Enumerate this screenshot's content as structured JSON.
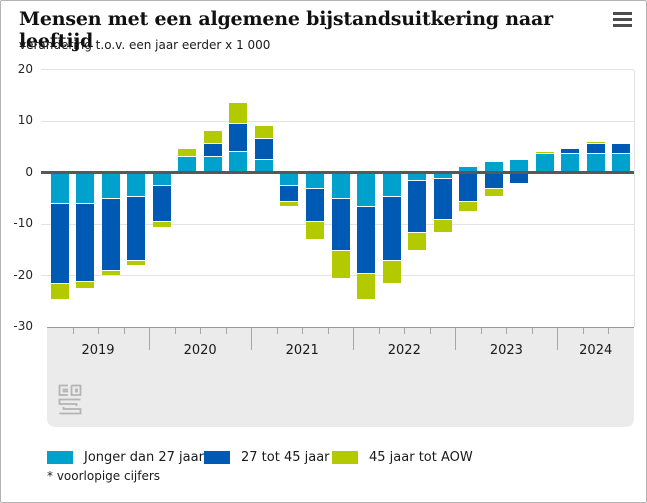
{
  "widget": {
    "title": "Mensen met een algemene bijstandsuitkering naar leeftijd",
    "subtitle": "verandering t.o.v. een jaar eerder x 1 000",
    "menu_icon": "hamburger-icon",
    "watermark_icon": "cbs-logo",
    "footnote": "* voorlopige cijfers"
  },
  "colors": {
    "jonger_dan_27": "#00a1cd",
    "van_27_tot_45": "#0059b3",
    "van_45_tot_aow": "#b3c900",
    "zero_line": "#58585a",
    "gridline": "#e3e3e3",
    "axis_band": "#ebebeb"
  },
  "legend": {
    "items": [
      {
        "label": "Jonger dan 27 jaar",
        "color": "#00a1cd"
      },
      {
        "label": "27 tot 45 jaar",
        "color": "#0059b3"
      },
      {
        "label": "45 jaar tot AOW",
        "color": "#b3c900"
      }
    ]
  },
  "chart_data": {
    "type": "bar",
    "stacked": true,
    "title": "Mensen met een algemene bijstandsuitkering naar leeftijd",
    "ylabel": "verandering t.o.v. een jaar eerder x 1 000",
    "ylim": [
      -30,
      20
    ],
    "yticks": [
      20,
      10,
      0,
      -10,
      -20,
      -30
    ],
    "grid": true,
    "legend_position": "bottom",
    "x_years": [
      "2019",
      "2020",
      "2021",
      "2022",
      "2023",
      "2024"
    ],
    "quarters_per_year": [
      4,
      4,
      4,
      4,
      4,
      3
    ],
    "categories": [
      "2019 Q1",
      "2019 Q2",
      "2019 Q3",
      "2019 Q4",
      "2020 Q1",
      "2020 Q2",
      "2020 Q3",
      "2020 Q4",
      "2021 Q1",
      "2021 Q2",
      "2021 Q3",
      "2021 Q4",
      "2022 Q1",
      "2022 Q2",
      "2022 Q3",
      "2022 Q4",
      "2023 Q1",
      "2023 Q2",
      "2023 Q3",
      "2023 Q4",
      "2024 Q1",
      "2024 Q2",
      "2024 Q3"
    ],
    "series": [
      {
        "name": "Jonger dan 27 jaar",
        "color": "#00a1cd",
        "values": [
          -6,
          -6,
          -5,
          -4.5,
          -2.5,
          3,
          3,
          4,
          2.5,
          -2.5,
          -3,
          -5,
          -6.5,
          -4.5,
          -1.5,
          -1,
          1,
          2,
          2.5,
          3.5,
          3.5,
          3.5,
          3.5
        ]
      },
      {
        "name": "27 tot 45 jaar",
        "color": "#0059b3",
        "values": [
          -15.5,
          -15,
          -14,
          -12.5,
          -7,
          0,
          2.5,
          5.5,
          4,
          -3,
          -6.5,
          -10,
          -13,
          -12.5,
          -10,
          -8,
          -5.5,
          -3,
          -2,
          0,
          1,
          2,
          2
        ]
      },
      {
        "name": "45 jaar tot AOW",
        "color": "#b3c900",
        "values": [
          -3,
          -1.5,
          -1,
          -1,
          -1,
          1.5,
          2.5,
          4,
          2.5,
          -1,
          -3.5,
          -5.5,
          -5,
          -4.5,
          -3.5,
          -2.5,
          -2,
          -1.5,
          0,
          0.5,
          0,
          0.5,
          0
        ]
      }
    ]
  }
}
